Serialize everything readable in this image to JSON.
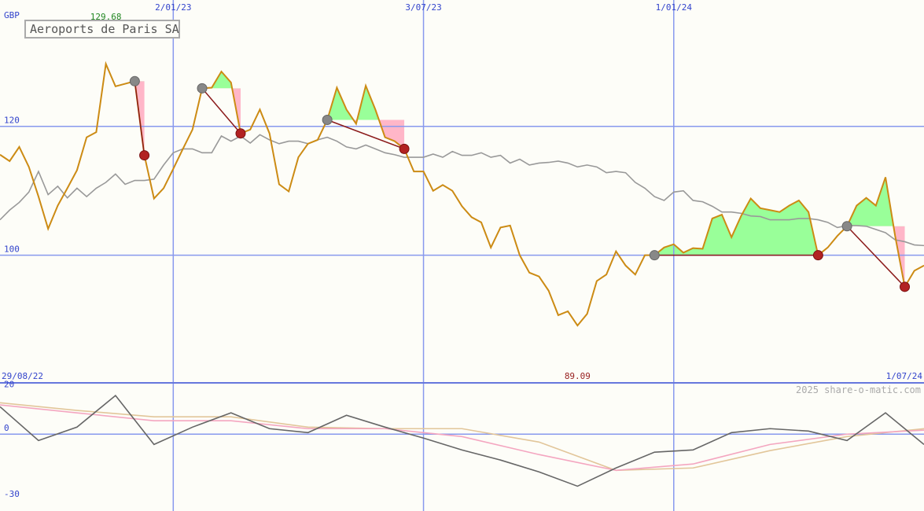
{
  "chart_data": [
    {
      "type": "line",
      "title": "Aeroports de Paris SA",
      "unit": "GBP",
      "xlim": [
        0,
        96
      ],
      "xticks": [
        {
          "value": 0,
          "label": "29/08/22"
        },
        {
          "value": 18,
          "label": "2/01/23"
        },
        {
          "value": 44,
          "label": "3/07/23"
        },
        {
          "value": 70,
          "label": "1/01/24"
        },
        {
          "value": 96,
          "label": "1/07/24"
        }
      ],
      "ylim": [
        80.2,
        139.6
      ],
      "yticks": [
        100,
        120
      ],
      "grid": true,
      "high_index": 11,
      "low_index": 60,
      "series": [
        {
          "color": "#cc8b14",
          "values": [
            115.6,
            114.6,
            116.8,
            113.7,
            109.1,
            104.1,
            107.7,
            110.4,
            113.2,
            118.3,
            119.1,
            129.68,
            126.2,
            126.6,
            127.0,
            115.5,
            108.8,
            110.4,
            113.4,
            116.5,
            119.5,
            125.9,
            126.0,
            128.5,
            126.8,
            118.9,
            119.5,
            122.6,
            118.9,
            111.0,
            109.9,
            115.2,
            117.3,
            117.9,
            121.0,
            126.0,
            122.6,
            120.4,
            126.3,
            122.6,
            118.3,
            117.7,
            116.5,
            113.0,
            113.0,
            110.0,
            110.9,
            110.0,
            107.6,
            105.9,
            105.1,
            101.2,
            104.3,
            104.6,
            100.0,
            97.3,
            96.7,
            94.5,
            90.7,
            91.3,
            89.09,
            90.9,
            96.0,
            97.0,
            100.6,
            98.4,
            97.0,
            100.0,
            100.0,
            101.2,
            101.7,
            100.4,
            101.1,
            101.0,
            105.7,
            106.3,
            102.8,
            106.1,
            108.8,
            107.3,
            107.0,
            106.7,
            107.7,
            108.5,
            106.7,
            100.0,
            101.2,
            103.0,
            104.5,
            107.7,
            108.9,
            107.7,
            112.1,
            103.0,
            95.1,
            97.6,
            98.4
          ]
        },
        {
          "color": "#999999",
          "values": [
            105.5,
            107.0,
            108.2,
            109.8,
            113.0,
            109.4,
            110.7,
            108.9,
            110.4,
            109.1,
            110.4,
            111.3,
            112.6,
            111.0,
            111.6,
            111.6,
            111.8,
            114.0,
            115.9,
            116.5,
            116.5,
            115.9,
            115.9,
            118.5,
            117.7,
            118.5,
            117.4,
            118.7,
            117.9,
            117.3,
            117.7,
            117.7,
            117.3,
            117.9,
            118.3,
            117.7,
            116.8,
            116.5,
            117.1,
            116.5,
            115.9,
            115.6,
            115.2,
            115.2,
            115.2,
            115.7,
            115.2,
            116.1,
            115.5,
            115.5,
            115.9,
            115.2,
            115.5,
            114.3,
            114.9,
            114.0,
            114.3,
            114.4,
            114.6,
            114.3,
            113.7,
            114.0,
            113.7,
            112.8,
            113.0,
            112.8,
            111.3,
            110.4,
            109.1,
            108.5,
            109.8,
            110.0,
            108.5,
            108.3,
            107.6,
            106.7,
            106.7,
            106.5,
            106.1,
            106.0,
            105.5,
            105.5,
            105.5,
            105.7,
            105.7,
            105.5,
            105.1,
            104.3,
            104.6,
            104.6,
            104.5,
            104.0,
            103.5,
            102.4,
            102.1,
            101.6,
            101.5
          ]
        }
      ],
      "trades": [
        {
          "buy": 14,
          "sell": 15
        },
        {
          "buy": 21,
          "sell": 25
        },
        {
          "buy": 34,
          "sell": 42
        },
        {
          "buy": 68,
          "sell": 85
        },
        {
          "buy": 88,
          "sell": 94
        }
      ],
      "trade_colors": {
        "up": "#99ff99",
        "down": "#ffb6c8",
        "link": "#8b1a1a",
        "buy": "#888888",
        "sell": "#b22222"
      }
    },
    {
      "type": "line",
      "credit": "2025 share-o-matic.com",
      "xlim": [
        0,
        96
      ],
      "ylim": [
        -35,
        23
      ],
      "yticks": [
        20,
        0,
        -30
      ],
      "series": [
        {
          "color": "#666666",
          "x": [
            0,
            4,
            8,
            12,
            16,
            20,
            24,
            28,
            32,
            36,
            40,
            44,
            48,
            52,
            56,
            60,
            64,
            68,
            72,
            76,
            80,
            84,
            88,
            92,
            96
          ],
          "values": [
            12.5,
            -2.9,
            3.2,
            17.6,
            -4.7,
            3.2,
            9.7,
            2.5,
            0.7,
            8.6,
            3.2,
            -1.8,
            -7.2,
            -11.8,
            -17.2,
            -23.7,
            -15.4,
            -8.2,
            -7.2,
            0.7,
            2.5,
            1.4,
            -2.9,
            9.7,
            -4.7
          ]
        },
        {
          "color": "#f4a6c0",
          "x": [
            0,
            8,
            16,
            24,
            32,
            40,
            48,
            56,
            64,
            72,
            80,
            88,
            96
          ],
          "values": [
            13.3,
            9.7,
            6.1,
            6.1,
            2.5,
            2.5,
            -1.1,
            -9.3,
            -16.5,
            -13.6,
            -4.7,
            0.0,
            1.8
          ]
        },
        {
          "color": "#e2c69a",
          "x": [
            0,
            8,
            16,
            24,
            32,
            40,
            48,
            56,
            64,
            72,
            80,
            88,
            96
          ],
          "values": [
            14.3,
            10.8,
            7.9,
            7.9,
            3.2,
            2.5,
            2.5,
            -3.6,
            -16.5,
            -15.4,
            -7.5,
            -1.1,
            2.5
          ]
        }
      ]
    }
  ]
}
